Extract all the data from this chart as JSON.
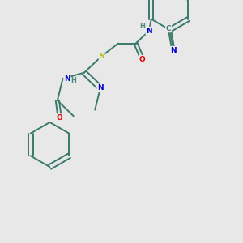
{
  "bg_color": "#e8e8e8",
  "bond_color": "#3a7a6a",
  "bond_width": 1.4,
  "atom_colors": {
    "N": "#0000cc",
    "O": "#dd0000",
    "S": "#bbbb00",
    "C": "#3a7a6a",
    "H": "#4a8a7a"
  },
  "font_size": 6.5
}
